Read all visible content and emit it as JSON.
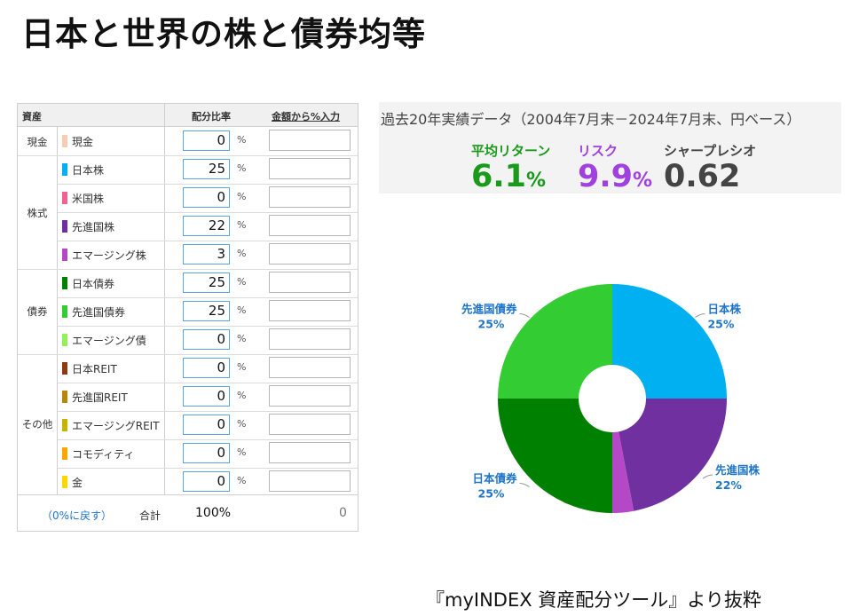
{
  "title": "日本と世界の株と債券均等",
  "table": {
    "header_asset": "資産",
    "header_ratio": "配分比率",
    "header_amount": "金額から%入力",
    "categories": [
      {
        "label": "現金"
      },
      {
        "label": "株式"
      },
      {
        "label": "債券"
      },
      {
        "label": "その他"
      }
    ],
    "unit": "%",
    "rows": [
      {
        "name": "現金",
        "value": "0",
        "color": "#f8cbb5"
      },
      {
        "name": "日本株",
        "value": "25",
        "color": "#00b0f0"
      },
      {
        "name": "米国株",
        "value": "0",
        "color": "#f06292"
      },
      {
        "name": "先進国株",
        "value": "22",
        "color": "#7030a0"
      },
      {
        "name": "エマージング株",
        "value": "3",
        "color": "#b548c6"
      },
      {
        "name": "日本債券",
        "value": "25",
        "color": "#008000"
      },
      {
        "name": "先進国債券",
        "value": "25",
        "color": "#33cc33"
      },
      {
        "name": "エマージング債",
        "value": "0",
        "color": "#92f05a"
      },
      {
        "name": "日本REIT",
        "value": "0",
        "color": "#8b3a12"
      },
      {
        "name": "先進国REIT",
        "value": "0",
        "color": "#b8860b"
      },
      {
        "name": "エマージングREIT",
        "value": "0",
        "color": "#c8b400"
      },
      {
        "name": "コモディティ",
        "value": "0",
        "color": "#ffa500"
      },
      {
        "name": "金",
        "value": "0",
        "color": "#ffd700"
      }
    ],
    "footer": {
      "reset": "（0%に戻す）",
      "total_label": "合計",
      "total_pct": "100%",
      "total_amount": "0"
    }
  },
  "stats": {
    "header": "過去20年実績データ（2004年7月末－2024年7月末、円ベース）",
    "avg_return_label": "平均リターン",
    "avg_return_value": "6.1",
    "risk_label": "リスク",
    "risk_value": "9.9",
    "pct_unit": "%",
    "sharpe_label": "シャープレシオ",
    "sharpe_value": "0.62",
    "colors": {
      "return": "#1a9a1a",
      "risk": "#a040e0",
      "sharpe": "#444444"
    }
  },
  "chart_data": {
    "type": "pie",
    "donut": true,
    "slices": [
      {
        "label": "日本株",
        "value": 25,
        "text": "25%",
        "color": "#00b0f0",
        "show_label": true
      },
      {
        "label": "先進国株",
        "value": 22,
        "text": "22%",
        "color": "#7030a0",
        "show_label": true
      },
      {
        "label": "エマージング株",
        "value": 3,
        "text": "",
        "color": "#b548c6",
        "show_label": false
      },
      {
        "label": "日本債券",
        "value": 25,
        "text": "25%",
        "color": "#008000",
        "show_label": true
      },
      {
        "label": "先進国債券",
        "value": 25,
        "text": "25%",
        "color": "#33cc33",
        "show_label": true
      }
    ]
  },
  "credit": "『myINDEX  資産配分ツール』より抜粋"
}
